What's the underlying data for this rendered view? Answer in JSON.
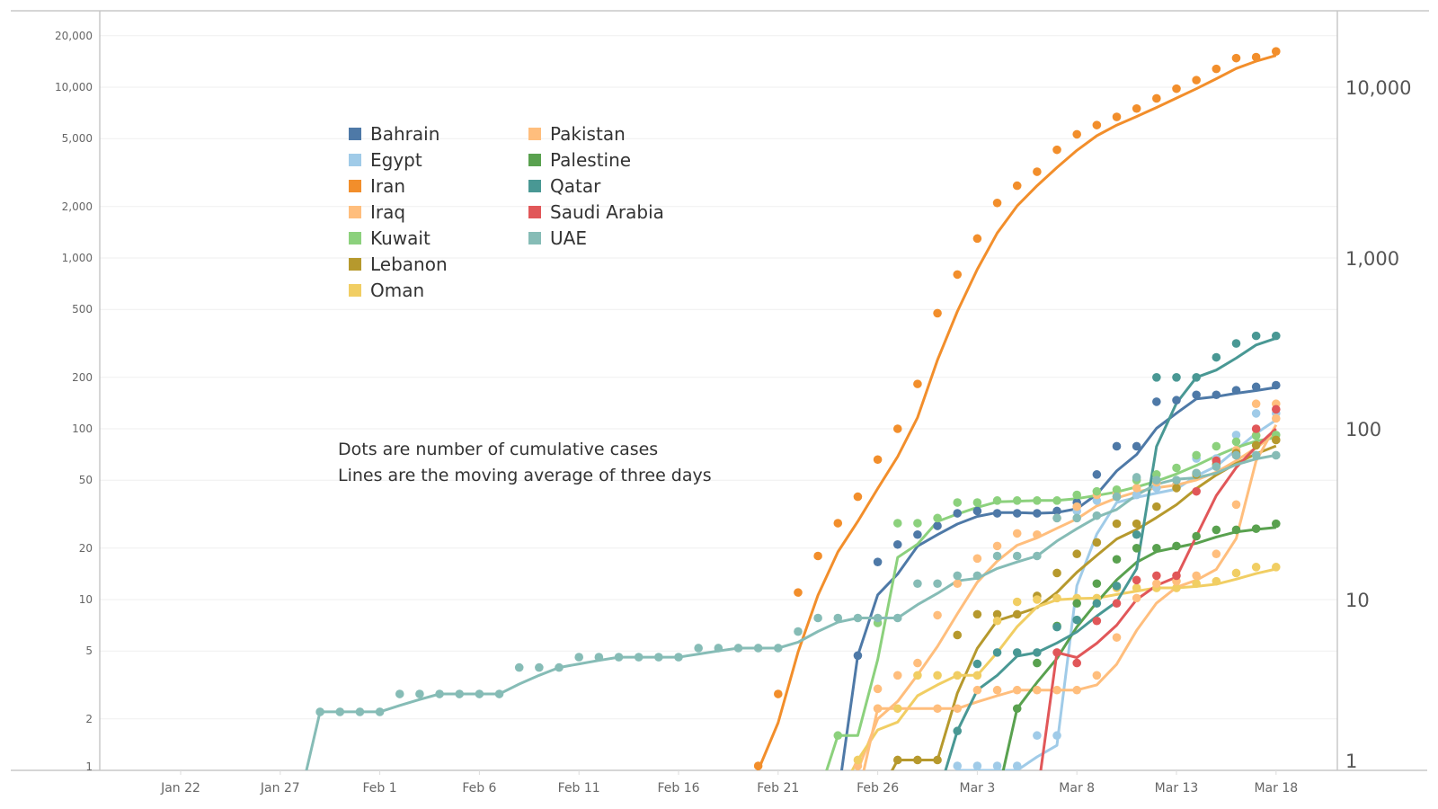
{
  "chart_data": {
    "type": "line",
    "title": "",
    "xlabel": "",
    "ylabel": "",
    "yscale": "log",
    "ylim": [
      1,
      25000
    ],
    "x_unit": "days since Jan 22",
    "x_ticks": [
      {
        "day": 0,
        "label": "Jan 22"
      },
      {
        "day": 5,
        "label": "Jan 27"
      },
      {
        "day": 10,
        "label": "Feb 1"
      },
      {
        "day": 15,
        "label": "Feb 6"
      },
      {
        "day": 20,
        "label": "Feb 11"
      },
      {
        "day": 25,
        "label": "Feb 16"
      },
      {
        "day": 30,
        "label": "Feb 21"
      },
      {
        "day": 35,
        "label": "Feb 26"
      },
      {
        "day": 40,
        "label": "Mar 3"
      },
      {
        "day": 45,
        "label": "Mar 8"
      },
      {
        "day": 50,
        "label": "Mar 13"
      },
      {
        "day": 55,
        "label": "Mar 18"
      }
    ],
    "y_ticks_left": [
      {
        "value": 1,
        "label": "1"
      },
      {
        "value": 2,
        "label": "2"
      },
      {
        "value": 5,
        "label": "5"
      },
      {
        "value": 10,
        "label": "10"
      },
      {
        "value": 20,
        "label": "20"
      },
      {
        "value": 50,
        "label": "50"
      },
      {
        "value": 100,
        "label": "100"
      },
      {
        "value": 200,
        "label": "200"
      },
      {
        "value": 500,
        "label": "500"
      },
      {
        "value": 1000,
        "label": "1,000"
      },
      {
        "value": 2000,
        "label": "2,000"
      },
      {
        "value": 5000,
        "label": "5,000"
      },
      {
        "value": 10000,
        "label": "10,000"
      },
      {
        "value": 20000,
        "label": "20,000"
      }
    ],
    "y_ticks_right": [
      {
        "value": 1,
        "label": "1"
      },
      {
        "value": 10,
        "label": "10"
      },
      {
        "value": 100,
        "label": "100"
      },
      {
        "value": 1000,
        "label": "1,000"
      },
      {
        "value": 10000,
        "label": "10,000"
      }
    ],
    "grid": true,
    "legend_position": "top-left",
    "line_meaning": "3-day moving average",
    "annotations": [
      "Dots are number of cumulative cases",
      "Lines are the moving average of three days"
    ],
    "series": [
      {
        "name": "Bahrain",
        "color": "#4E79A7",
        "start_day": 34,
        "values": [
          4.7,
          16.6,
          21,
          24,
          27,
          32,
          33,
          32,
          32,
          32,
          33,
          37,
          54,
          79,
          79,
          144,
          147,
          158,
          158,
          168,
          176,
          180
        ]
      },
      {
        "name": "Egypt",
        "color": "#A0CBE8",
        "start_day": 39,
        "values": [
          1,
          1,
          1,
          1,
          1.6,
          1.6,
          33,
          38,
          40,
          41,
          45,
          47,
          67,
          67,
          92,
          123,
          123
        ]
      },
      {
        "name": "Iran",
        "color": "#F28E2B",
        "start_day": 29,
        "values": [
          1,
          2.8,
          11,
          18,
          28,
          40,
          66,
          100,
          183,
          475,
          800,
          1300,
          2100,
          2650,
          3200,
          4300,
          5300,
          6000,
          6700,
          7500,
          8600,
          9800,
          11000,
          12800,
          14800,
          15000,
          16200
        ]
      },
      {
        "name": "Iraq",
        "color": "#FFBE7D",
        "start_day": 34,
        "values": [
          1,
          3,
          3.6,
          4.25,
          8.1,
          12.4,
          17.4,
          20.6,
          24.4,
          24,
          30,
          35,
          41,
          42,
          45,
          48.5,
          47,
          55,
          65,
          75,
          92,
          115
        ]
      },
      {
        "name": "Kuwait",
        "color": "#8CD17D",
        "start_day": 33,
        "values": [
          1.6,
          null,
          7.3,
          28,
          28,
          30,
          37,
          37,
          38,
          38,
          38,
          38,
          41,
          43,
          44,
          50,
          54,
          59,
          70,
          79,
          84,
          91,
          92
        ]
      },
      {
        "name": "Lebanon",
        "color": "#B6992D",
        "start_day": 36,
        "values": [
          1.15,
          1.15,
          1.15,
          6.2,
          8.2,
          8.2,
          8.2,
          10.5,
          14.3,
          18.5,
          21.6,
          27.8,
          27.8,
          35,
          45,
          54,
          62,
          72,
          80,
          86
        ]
      },
      {
        "name": "Oman",
        "color": "#F1CE63",
        "start_day": 34,
        "values": [
          1.15,
          2.3,
          2.3,
          3.6,
          3.6,
          3.6,
          3.6,
          7.5,
          9.7,
          10,
          10.2,
          10.2,
          10.2,
          11.7,
          11.7,
          11.7,
          11.7,
          12.4,
          12.8,
          14.3,
          15.5,
          15.5
        ]
      },
      {
        "name": "Pakistan",
        "color": "#FFBE7D",
        "start_day": 35,
        "values": [
          2.3,
          null,
          null,
          2.3,
          2.3,
          2.95,
          2.95,
          2.95,
          2.95,
          2.95,
          2.95,
          3.6,
          6,
          10.2,
          12.4,
          12.8,
          13.8,
          18.5,
          36,
          140,
          140
        ]
      },
      {
        "name": "Palestine",
        "color": "#59A14F",
        "start_day": 42,
        "values": [
          2.3,
          4.25,
          7,
          9.5,
          12.4,
          17.2,
          20,
          20,
          20.6,
          23.5,
          25.6,
          25.6,
          26,
          27.8
        ]
      },
      {
        "name": "Qatar",
        "color": "#499894",
        "start_day": 39,
        "values": [
          1.7,
          4.2,
          4.9,
          4.9,
          4.9,
          6.9,
          7.6,
          9.5,
          12,
          24,
          200,
          200,
          200,
          262,
          316,
          350,
          350
        ]
      },
      {
        "name": "Saudi Arabia",
        "color": "#E15759",
        "start_day": 44,
        "values": [
          4.9,
          4.25,
          7.5,
          9.5,
          13,
          13.8,
          13.8,
          43,
          65,
          70,
          100,
          130
        ]
      },
      {
        "name": "UAE",
        "color": "#86BCB6",
        "start_day": 7,
        "values": [
          2.2,
          2.2,
          2.2,
          2.2,
          2.8,
          2.8,
          2.8,
          2.8,
          2.8,
          2.8,
          4,
          4,
          4,
          4.6,
          4.6,
          4.6,
          4.6,
          4.6,
          4.6,
          5.2,
          5.2,
          5.2,
          5.2,
          5.2,
          6.5,
          7.8,
          7.8,
          7.8,
          7.8,
          7.8,
          12.4,
          12.4,
          13.8,
          13.8,
          18,
          18,
          18,
          30,
          30,
          31,
          40,
          52,
          50,
          50,
          55,
          60,
          70,
          70,
          70
        ]
      }
    ]
  },
  "legend_columns": [
    [
      "Bahrain",
      "Egypt",
      "Iran",
      "Iraq",
      "Kuwait",
      "Lebanon",
      "Oman"
    ],
    [
      "Pakistan",
      "Palestine",
      "Qatar",
      "Saudi Arabia",
      "UAE"
    ]
  ]
}
